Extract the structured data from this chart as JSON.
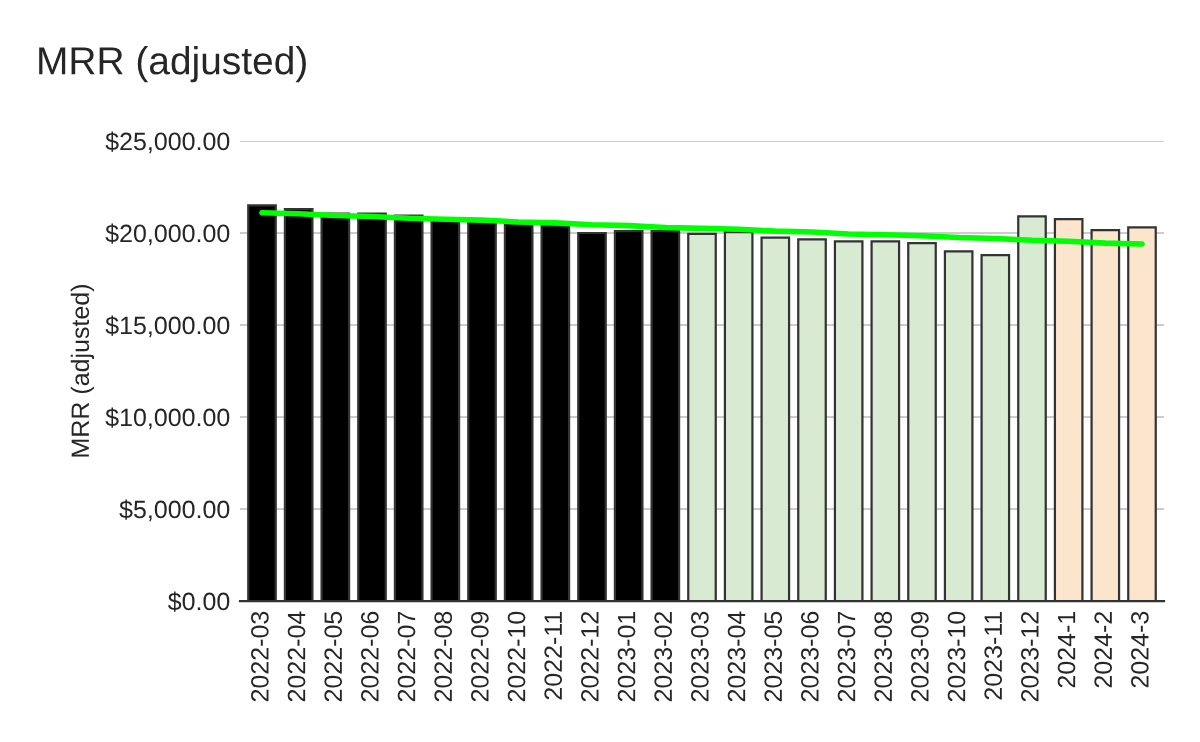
{
  "chart_data": {
    "type": "bar",
    "title": "MRR (adjusted)",
    "ylabel": "MRR (adjusted)",
    "categories": [
      "2022-03",
      "2022-04",
      "2022-05",
      "2022-06",
      "2022-07",
      "2022-08",
      "2022-09",
      "2022-10",
      "2022-11",
      "2022-12",
      "2023-01",
      "2023-02",
      "2023-03",
      "2023-04",
      "2023-05",
      "2023-06",
      "2023-07",
      "2023-08",
      "2023-09",
      "2023-10",
      "2023-11",
      "2023-12",
      "2024-1",
      "2024-2",
      "2024-3"
    ],
    "series": [
      {
        "values": [
          21500,
          21300,
          21050,
          21050,
          20950,
          20800,
          20650,
          20500,
          20400,
          20000,
          20100,
          20100,
          19950,
          20050,
          19750,
          19650,
          19550,
          19550,
          19450,
          19000,
          18800,
          20900,
          20750,
          20150,
          20300
        ],
        "colors": [
          "#000000",
          "#000000",
          "#000000",
          "#000000",
          "#000000",
          "#000000",
          "#000000",
          "#000000",
          "#000000",
          "#000000",
          "#000000",
          "#000000",
          "#d9ead3",
          "#d9ead3",
          "#d9ead3",
          "#d9ead3",
          "#d9ead3",
          "#d9ead3",
          "#d9ead3",
          "#d9ead3",
          "#d9ead3",
          "#d9ead3",
          "#fce5cd",
          "#fce5cd",
          "#fce5cd"
        ]
      },
      {
        "type": "line",
        "color": "#00ff00",
        "values": [
          21100,
          21050,
          20950,
          20900,
          20800,
          20750,
          20700,
          20600,
          20550,
          20450,
          20400,
          20300,
          20250,
          20200,
          20100,
          20050,
          19950,
          19900,
          19850,
          19750,
          19700,
          19600,
          19550,
          19450,
          19400
        ]
      }
    ],
    "ylim": [
      0,
      25000
    ],
    "yticks": [
      {
        "value": 0,
        "label": "$0.00"
      },
      {
        "value": 5000,
        "label": "$5,000.00"
      },
      {
        "value": 10000,
        "label": "$10,000.00"
      },
      {
        "value": 15000,
        "label": "$15,000.00"
      },
      {
        "value": 20000,
        "label": "$20,000.00"
      },
      {
        "value": 25000,
        "label": "$25,000.00"
      }
    ],
    "grid": "y",
    "legend": false
  }
}
